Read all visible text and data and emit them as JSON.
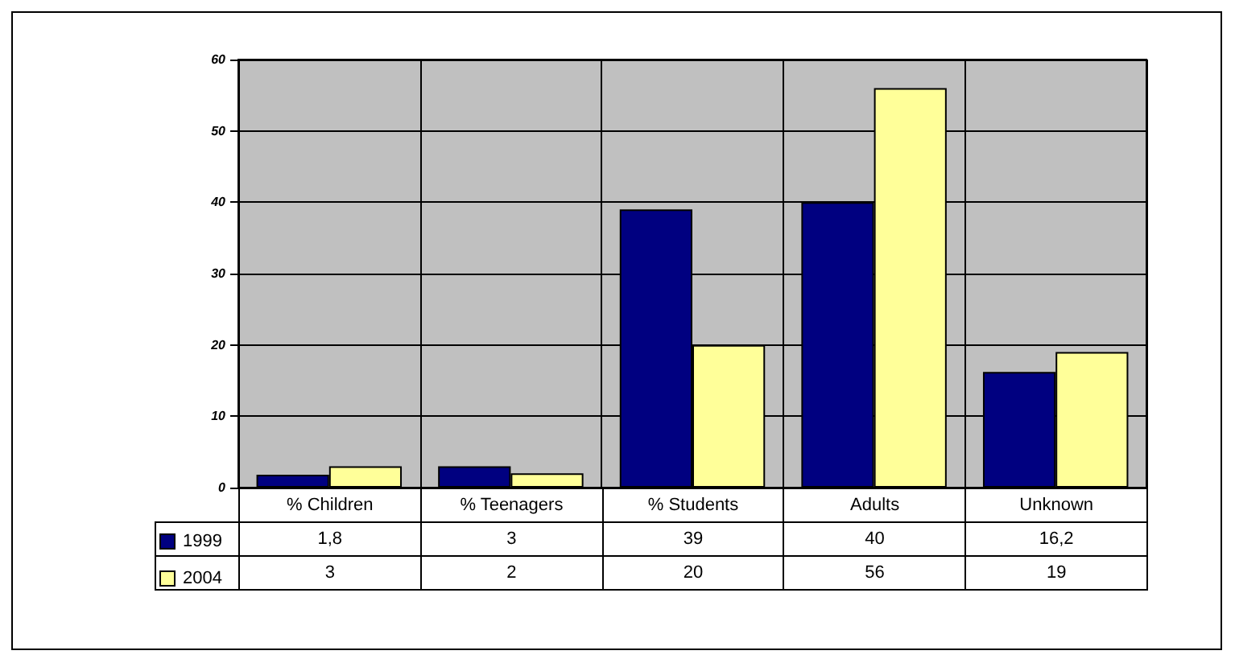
{
  "chart_data": {
    "type": "bar",
    "categories": [
      "% Children",
      "% Teenagers",
      "% Students",
      "Adults",
      "Unknown"
    ],
    "series": [
      {
        "name": "1999",
        "color": "#000080",
        "values": [
          1.8,
          3,
          39,
          40,
          16.2
        ],
        "value_labels": [
          "1,8",
          "3",
          "39",
          "40",
          "16,2"
        ]
      },
      {
        "name": "2004",
        "color": "#ffff99",
        "values": [
          3,
          2,
          20,
          56,
          19
        ],
        "value_labels": [
          "3",
          "2",
          "20",
          "56",
          "19"
        ]
      }
    ],
    "ylim": [
      0,
      60
    ],
    "yticks": [
      0,
      10,
      20,
      30,
      40,
      50,
      60
    ],
    "grid": "y",
    "legend": "bottom left"
  }
}
